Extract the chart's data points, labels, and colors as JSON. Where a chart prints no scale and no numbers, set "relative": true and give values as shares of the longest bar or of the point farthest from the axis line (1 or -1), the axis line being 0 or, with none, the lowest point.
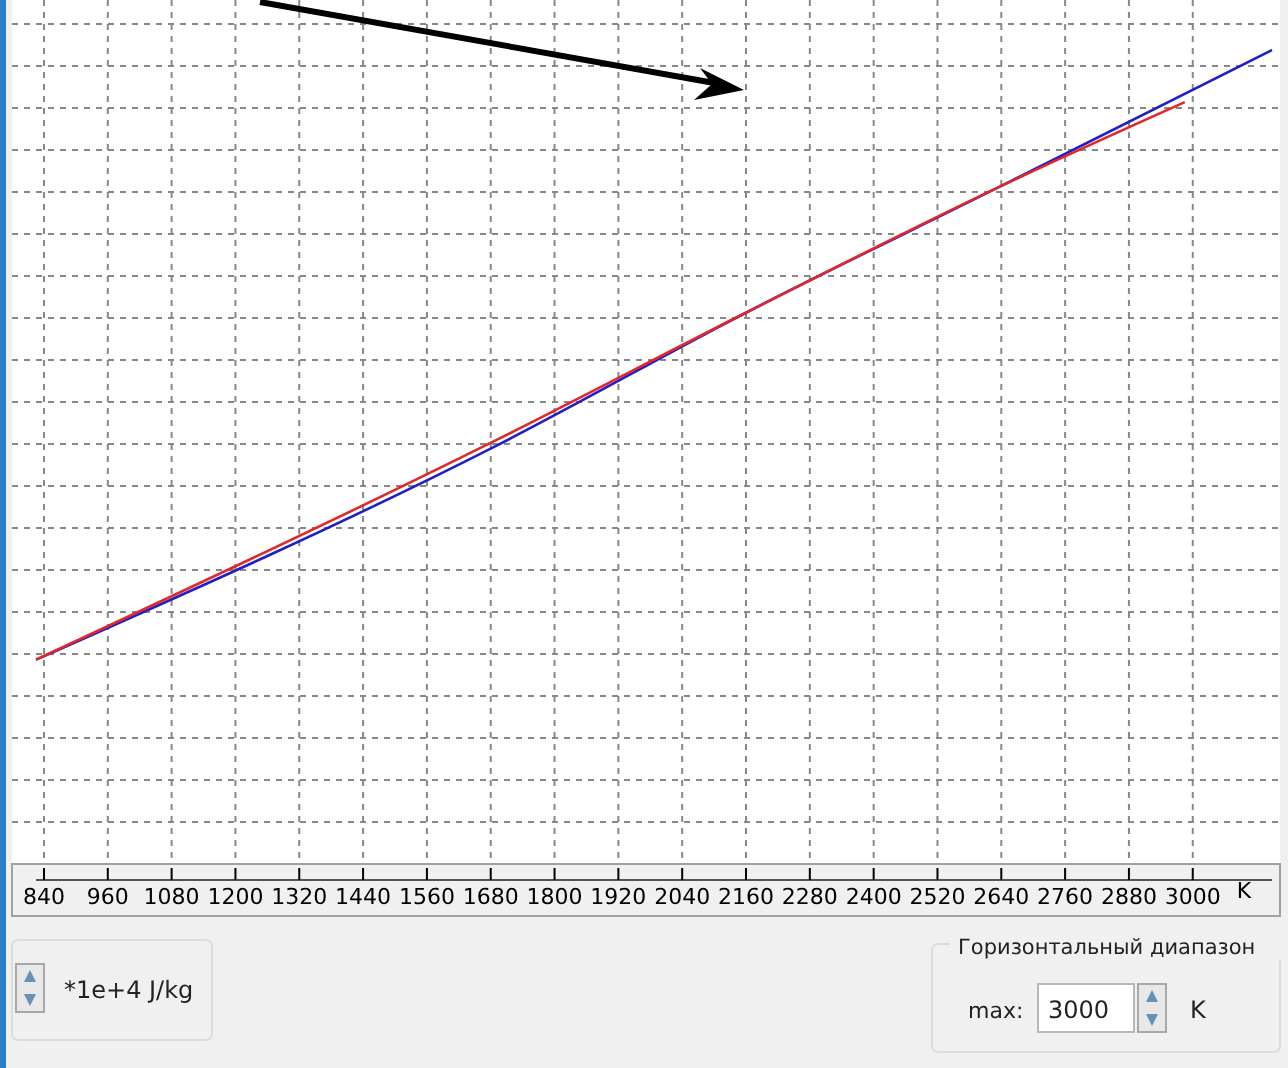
{
  "chart_data": {
    "type": "line",
    "relative": true,
    "xlabel": "K",
    "x": [
      825,
      1691,
      2156,
      2640,
      3149
    ],
    "series": [
      {
        "color": "#1f1fc8",
        "values": [
          0.251,
          0.514,
          0.676,
          0.833,
          1
        ]
      },
      {
        "color": "#e0282a",
        "x": [
          825,
          1691,
          2156,
          2640,
          2985
        ],
        "values": [
          0.251,
          0.521,
          0.676,
          0.833,
          0.936
        ]
      }
    ],
    "xlim": [
      825,
      3149
    ],
    "xticks": [
      840,
      960,
      1080,
      1200,
      1320,
      1440,
      1560,
      1680,
      1800,
      1920,
      2040,
      2160,
      2280,
      2400,
      2520,
      2640,
      2760,
      2880,
      3000
    ],
    "grid": true,
    "marker": "none",
    "line_style": "solid",
    "annotations": [
      "*1e+4 J/kg",
      "Горизонтальный диапазон",
      "max:",
      "3000",
      "K"
    ]
  }
}
